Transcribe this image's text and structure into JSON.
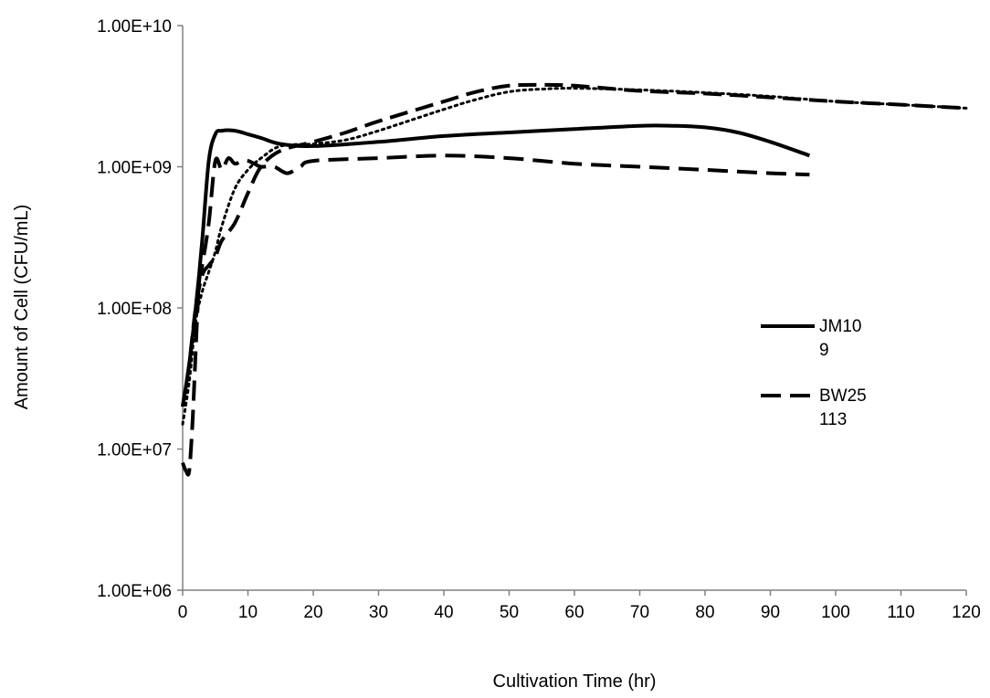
{
  "chart_data": {
    "type": "line",
    "title": "",
    "xlabel": "Cultivation Time (hr)",
    "ylabel": "Amount of Cell (CFU/mL)",
    "xlim": [
      0,
      120
    ],
    "ylim": [
      1000000,
      10000000000
    ],
    "yscale": "log",
    "grid": false,
    "x_ticks": [
      "0",
      "10",
      "20",
      "30",
      "40",
      "50",
      "60",
      "70",
      "80",
      "90",
      "100",
      "110",
      "120"
    ],
    "y_ticks": [
      "1.00E+06",
      "1.00E+07",
      "1.00E+08",
      "1.00E+09",
      "1.00E+10"
    ],
    "legend": {
      "placement": "right",
      "entries": [
        [
          "JM10",
          "9"
        ],
        [
          "BW25",
          "113"
        ]
      ]
    },
    "series": [
      {
        "name": "JM109",
        "style": "solid",
        "x": [
          0,
          1,
          2,
          3,
          4,
          5,
          6,
          8,
          10,
          12,
          15,
          20,
          30,
          40,
          50,
          60,
          70,
          75,
          80,
          85,
          90,
          96
        ],
        "y": [
          20000000,
          40000000,
          100000000,
          300000000,
          1100000000,
          1700000000,
          1800000000,
          1800000000,
          1700000000,
          1600000000,
          1450000000,
          1400000000,
          1500000000,
          1650000000,
          1750000000,
          1850000000,
          1950000000,
          1950000000,
          1900000000,
          1750000000,
          1500000000,
          1200000000
        ]
      },
      {
        "name": "BW25113",
        "style": "dashed",
        "x": [
          0,
          0.5,
          1,
          1.5,
          2,
          2.5,
          3,
          4,
          5,
          6,
          7,
          8,
          9,
          10,
          11,
          12,
          14,
          16,
          18,
          20,
          30,
          40,
          50,
          60,
          70,
          80,
          90,
          96
        ],
        "y": [
          8000000,
          7000000,
          7000000,
          15000000,
          50000000,
          150000000,
          200000000,
          400000000,
          1100000000,
          950000000,
          1150000000,
          1050000000,
          1100000000,
          1100000000,
          1050000000,
          1000000000,
          1000000000,
          900000000,
          1000000000,
          1100000000,
          1150000000,
          1200000000,
          1150000000,
          1050000000,
          1000000000,
          950000000,
          900000000,
          880000000
        ]
      },
      {
        "name": "",
        "style": "dashed-long",
        "x": [
          0,
          1,
          2,
          3,
          4,
          5,
          6,
          8,
          10,
          12,
          15,
          20,
          25,
          30,
          40,
          45,
          50,
          55,
          60,
          70,
          80,
          90,
          100,
          110,
          120
        ],
        "y": [
          20000000,
          40000000,
          100000000,
          170000000,
          200000000,
          230000000,
          300000000,
          400000000,
          650000000,
          1000000000,
          1300000000,
          1500000000,
          1750000000,
          2100000000,
          2900000000,
          3400000000,
          3750000000,
          3800000000,
          3750000000,
          3450000000,
          3300000000,
          3100000000,
          2900000000,
          2750000000,
          2600000000
        ]
      },
      {
        "name": "",
        "style": "dotted",
        "x": [
          0,
          1,
          2,
          3,
          4,
          5,
          6,
          8,
          10,
          12,
          15,
          20,
          25,
          30,
          40,
          45,
          50,
          55,
          60,
          70,
          80,
          90,
          100,
          110,
          120
        ],
        "y": [
          15000000,
          30000000,
          80000000,
          130000000,
          180000000,
          250000000,
          380000000,
          700000000,
          950000000,
          1150000000,
          1400000000,
          1450000000,
          1550000000,
          1800000000,
          2550000000,
          3000000000,
          3400000000,
          3550000000,
          3600000000,
          3500000000,
          3350000000,
          3150000000,
          2900000000,
          2750000000,
          2600000000
        ]
      }
    ]
  }
}
